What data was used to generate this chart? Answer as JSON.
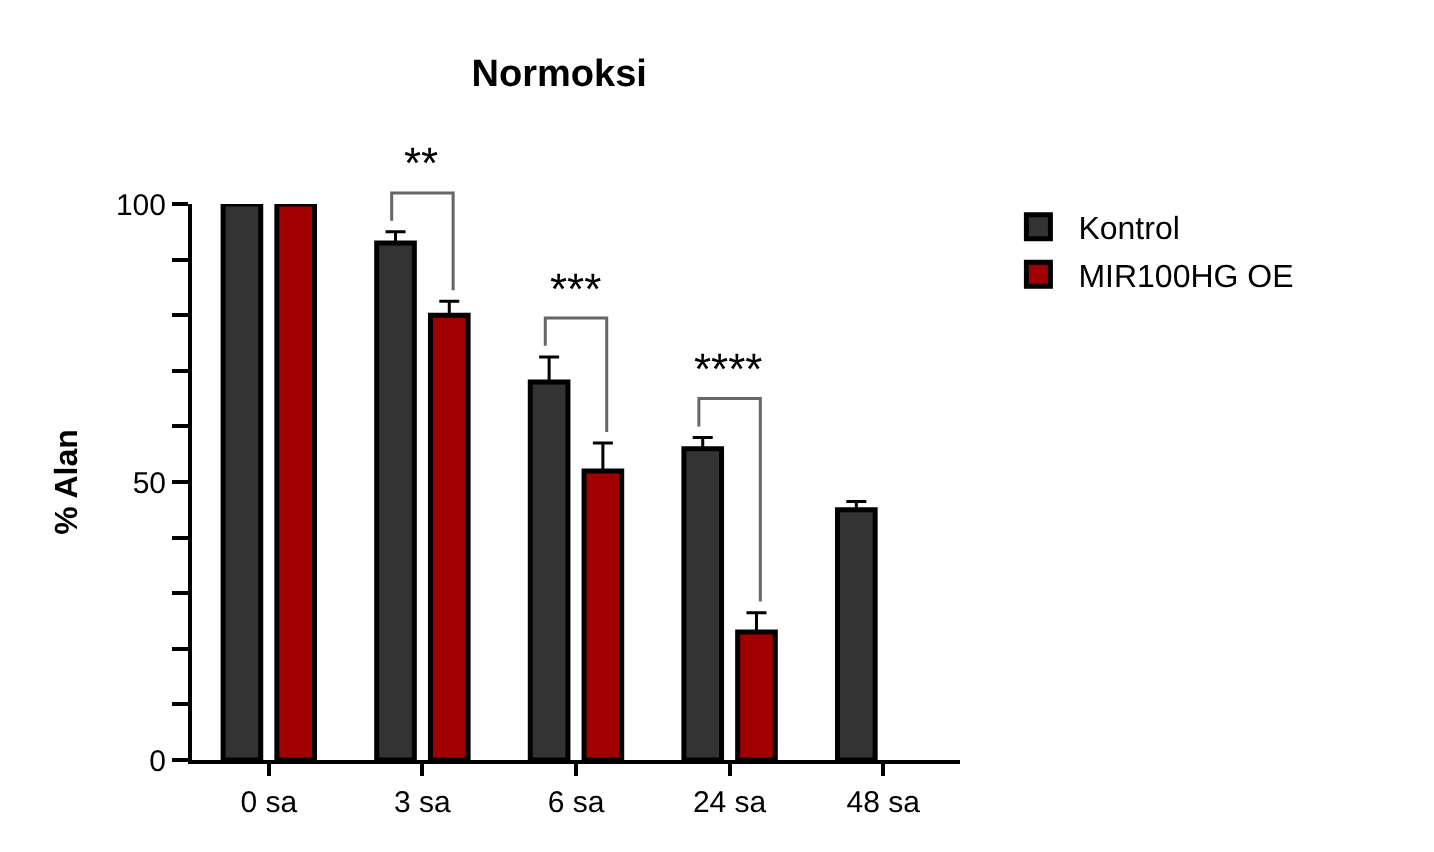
{
  "chart_data": {
    "type": "bar",
    "title": "Normoksi",
    "ylabel": "% Alan",
    "categories": [
      "0 sa",
      "3 sa",
      "6 sa",
      "24 sa",
      "48 sa"
    ],
    "series": [
      {
        "name": "Kontrol",
        "color": "#333333",
        "values": [
          100,
          93,
          68,
          56,
          45
        ],
        "errors": [
          null,
          [
            93,
            95
          ],
          [
            68,
            72.5
          ],
          [
            56,
            58
          ],
          [
            45,
            46.5
          ]
        ]
      },
      {
        "name": "MIR100HG OE",
        "color": "#a00000",
        "values": [
          100,
          80,
          52,
          23,
          null
        ],
        "errors": [
          null,
          [
            80,
            82.5
          ],
          [
            52,
            57
          ],
          [
            23,
            26.5
          ],
          null
        ]
      }
    ],
    "ylim": [
      0,
      100
    ],
    "yticks": [
      0,
      {
        "value": 10,
        "label": null
      },
      {
        "value": 20,
        "label": null
      },
      {
        "value": 30,
        "label": null
      },
      {
        "value": 40,
        "label": null
      },
      50,
      {
        "value": 60,
        "label": null
      },
      {
        "value": 70,
        "label": null
      },
      {
        "value": 80,
        "label": null
      },
      {
        "value": 90,
        "label": null
      },
      100
    ],
    "annotations": [
      "**",
      "***",
      "****"
    ],
    "legend": "top right"
  }
}
